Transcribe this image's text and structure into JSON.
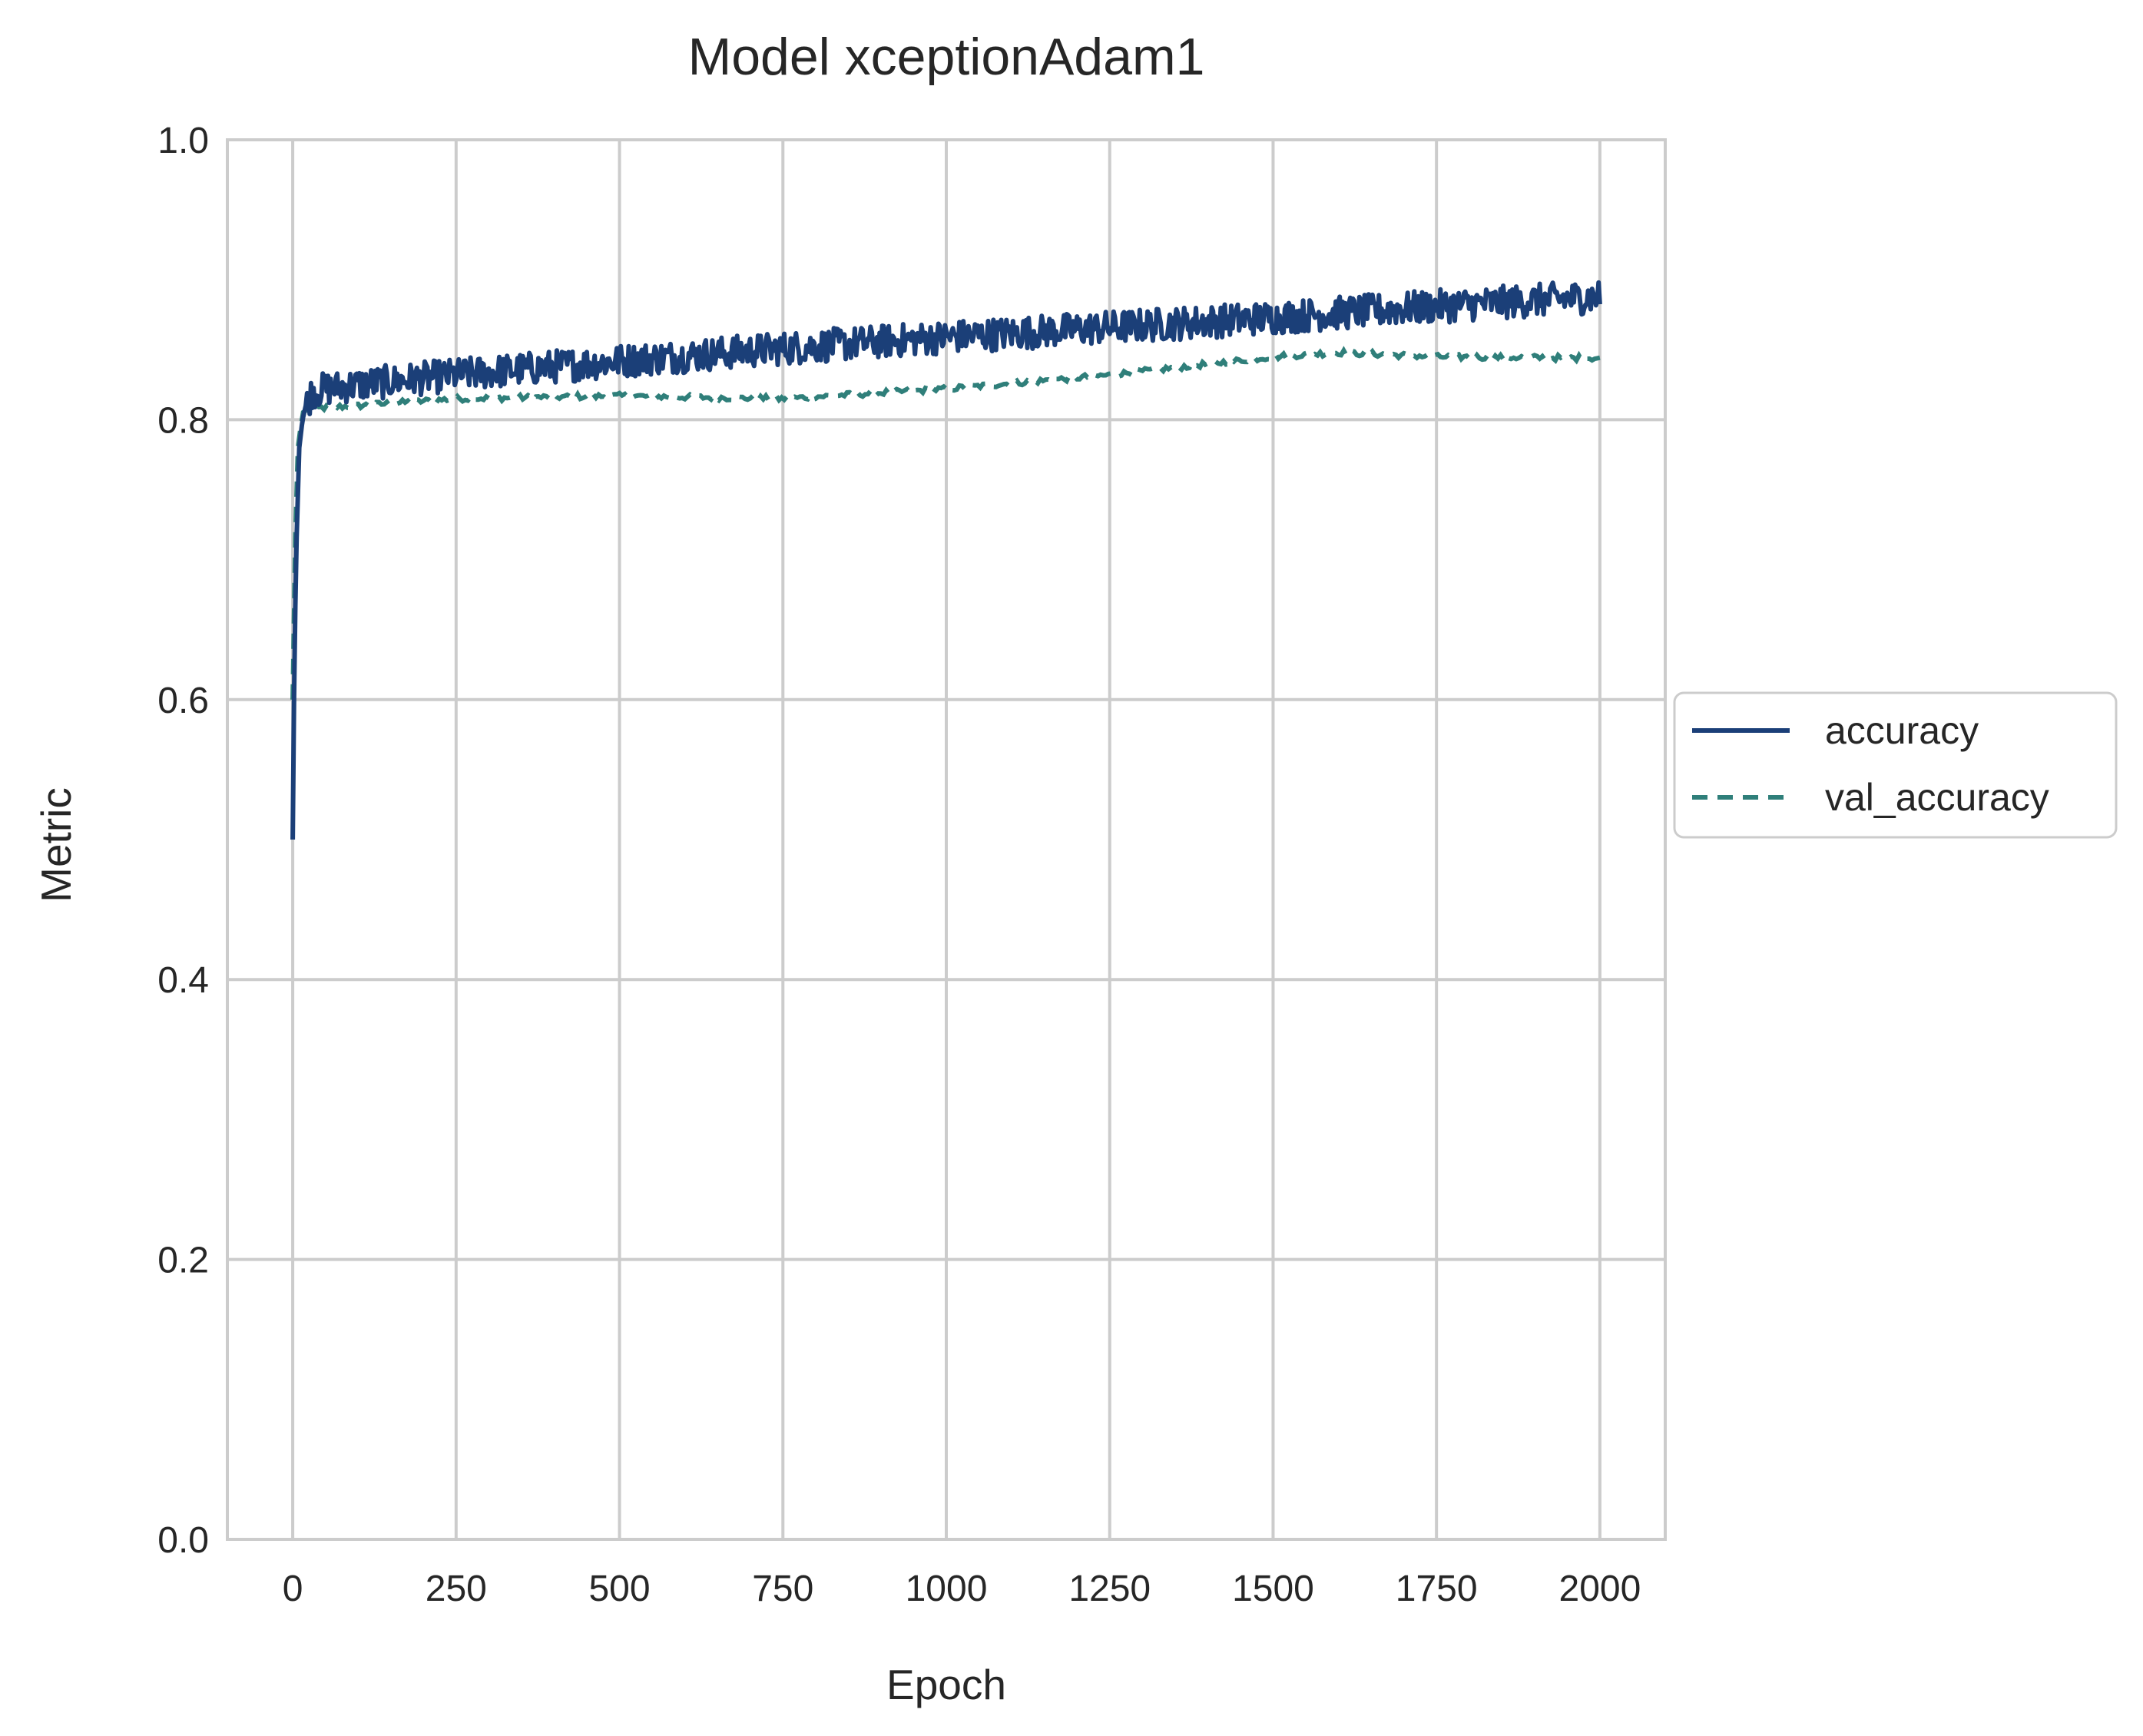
{
  "chart_data": {
    "type": "line",
    "title": "Model xceptionAdam1",
    "xlabel": "Epoch",
    "ylabel": "Metric",
    "xlim": [
      -100,
      2100
    ],
    "ylim": [
      0.0,
      1.0
    ],
    "x_ticks": [
      0,
      250,
      500,
      750,
      1000,
      1250,
      1500,
      1750,
      2000
    ],
    "y_ticks": [
      0.0,
      0.2,
      0.4,
      0.6,
      0.8,
      1.0
    ],
    "x_tick_labels": [
      "0",
      "250",
      "500",
      "750",
      "1000",
      "1250",
      "1500",
      "1750",
      "2000"
    ],
    "y_tick_labels": [
      "0.0",
      "0.2",
      "0.4",
      "0.6",
      "0.8",
      "1.0"
    ],
    "grid": true,
    "legend_position": "right, outside plot",
    "series": [
      {
        "name": "accuracy",
        "color": "#1b3f78",
        "style": "solid",
        "points": [
          [
            0,
            0.5
          ],
          [
            2,
            0.6
          ],
          [
            5,
            0.7
          ],
          [
            10,
            0.78
          ],
          [
            15,
            0.8
          ],
          [
            20,
            0.81
          ],
          [
            30,
            0.82
          ],
          [
            50,
            0.822
          ],
          [
            100,
            0.825
          ],
          [
            250,
            0.832
          ],
          [
            500,
            0.842
          ],
          [
            750,
            0.851
          ],
          [
            1000,
            0.859
          ],
          [
            1250,
            0.866
          ],
          [
            1500,
            0.873
          ],
          [
            1750,
            0.881
          ],
          [
            2000,
            0.888
          ]
        ],
        "noise_amplitude": 0.012
      },
      {
        "name": "val_accuracy",
        "color": "#2f7f7a",
        "style": "dashed",
        "points": [
          [
            0,
            0.6
          ],
          [
            3,
            0.7
          ],
          [
            8,
            0.78
          ],
          [
            15,
            0.805
          ],
          [
            25,
            0.808
          ],
          [
            100,
            0.81
          ],
          [
            250,
            0.815
          ],
          [
            500,
            0.817
          ],
          [
            750,
            0.815
          ],
          [
            1000,
            0.822
          ],
          [
            1250,
            0.832
          ],
          [
            1500,
            0.845
          ],
          [
            1600,
            0.848
          ],
          [
            1750,
            0.845
          ],
          [
            2000,
            0.844
          ]
        ]
      }
    ]
  }
}
